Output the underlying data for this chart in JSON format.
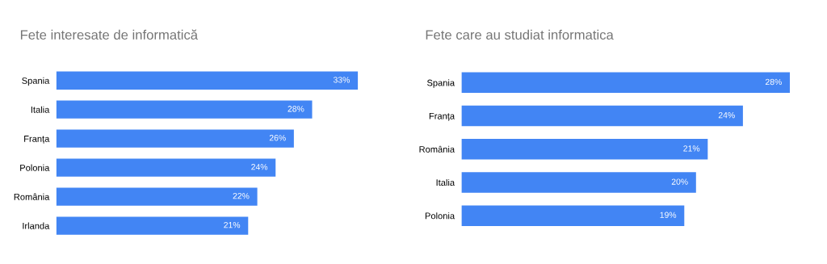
{
  "chart_data": [
    {
      "type": "bar",
      "orientation": "horizontal",
      "title": "Fete interesate de informatică",
      "categories": [
        "Spania",
        "Italia",
        "Franța",
        "Polonia",
        "România",
        "Irlanda"
      ],
      "values": [
        33,
        28,
        26,
        24,
        22,
        21
      ],
      "value_labels": [
        "33%",
        "28%",
        "26%",
        "24%",
        "22%",
        "21%"
      ],
      "color": "#4285f4",
      "tick_labels": "y",
      "grid": false,
      "legend": false
    },
    {
      "type": "bar",
      "orientation": "horizontal",
      "title": "Fete care au studiat informatica",
      "categories": [
        "Spania",
        "Franța",
        "România",
        "Italia",
        "Polonia"
      ],
      "values": [
        28,
        24,
        21,
        20,
        19
      ],
      "value_labels": [
        "28%",
        "24%",
        "21%",
        "20%",
        "19%"
      ],
      "color": "#4285f4",
      "tick_labels": "y",
      "grid": false,
      "legend": false
    }
  ]
}
